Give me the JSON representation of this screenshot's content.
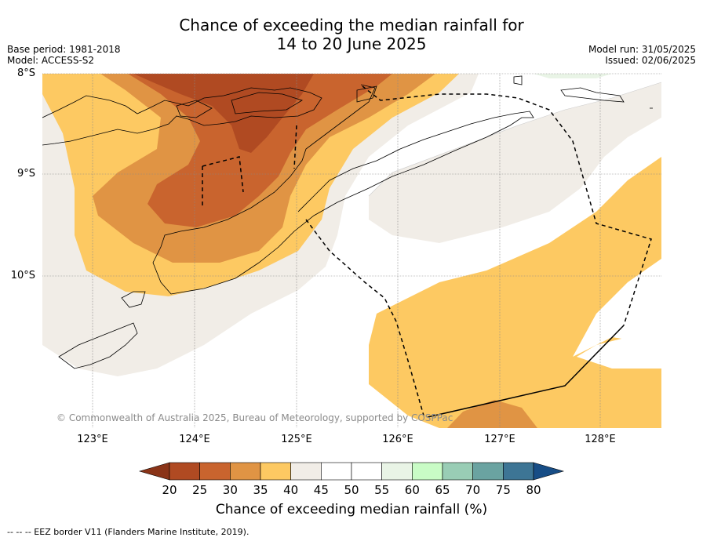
{
  "title_line1": "Chance of exceeding the median rainfall for",
  "title_line2": "14 to 20 June 2025",
  "base_period": "Base period: 1981-2018",
  "model": "Model: ACCESS-S2",
  "model_run": "Model run: 31/05/2025",
  "issued": "Issued: 02/06/2025",
  "lat_labels": [
    "8°S",
    "9°S",
    "10°S"
  ],
  "lon_labels": [
    "123°E",
    "124°E",
    "125°E",
    "126°E",
    "127°E",
    "128°E"
  ],
  "copyright": "© Commonwealth of Australia 2025, Bureau of Meteorology, supported by COSPPac",
  "colorbar": {
    "label": "Chance of exceeding median rainfall (%)",
    "ticks": [
      "20",
      "25",
      "30",
      "35",
      "40",
      "45",
      "50",
      "55",
      "60",
      "65",
      "70",
      "75",
      "80"
    ],
    "colors": [
      "#b04a22",
      "#c9642e",
      "#e09444",
      "#fdc962",
      "#f1ede7",
      "#ffffff",
      "#ffffff",
      "#e9f4e6",
      "#c9fcc6",
      "#99cdb5",
      "#6aa3a1",
      "#3d7595"
    ],
    "under_color": "#8a3418",
    "over_color": "#174d86"
  },
  "footer": "--  --  -- EEZ border V11 (Flanders Marine Institute, 2019)."
}
